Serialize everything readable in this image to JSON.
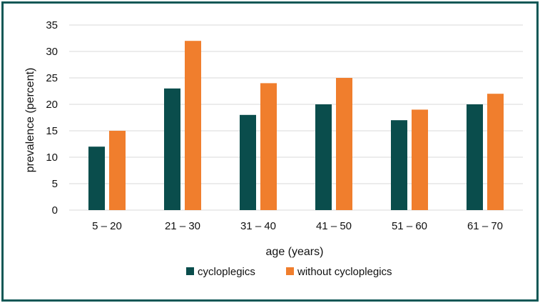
{
  "chart_data": {
    "type": "bar",
    "title": "",
    "categories": [
      "5 – 20",
      "21 – 30",
      "31 – 40",
      "41 – 50",
      "51 – 60",
      "61 – 70"
    ],
    "series": [
      {
        "name": "cycloplegics",
        "color": "#0a4d4c",
        "values": [
          12,
          23,
          18,
          20,
          17,
          20
        ]
      },
      {
        "name": "without cycloplegics",
        "color": "#f07e2d",
        "values": [
          15,
          32,
          24,
          25,
          19,
          22
        ]
      }
    ],
    "xlabel": "age (years)",
    "ylabel": "prevalence (percent)",
    "ylim": [
      0,
      35
    ],
    "yticks": [
      0,
      5,
      10,
      15,
      20,
      25,
      30,
      35
    ],
    "grid": true,
    "legend_position": "bottom"
  },
  "colors": {
    "frame": "#0f5856",
    "grid": "#d9d9d9"
  }
}
